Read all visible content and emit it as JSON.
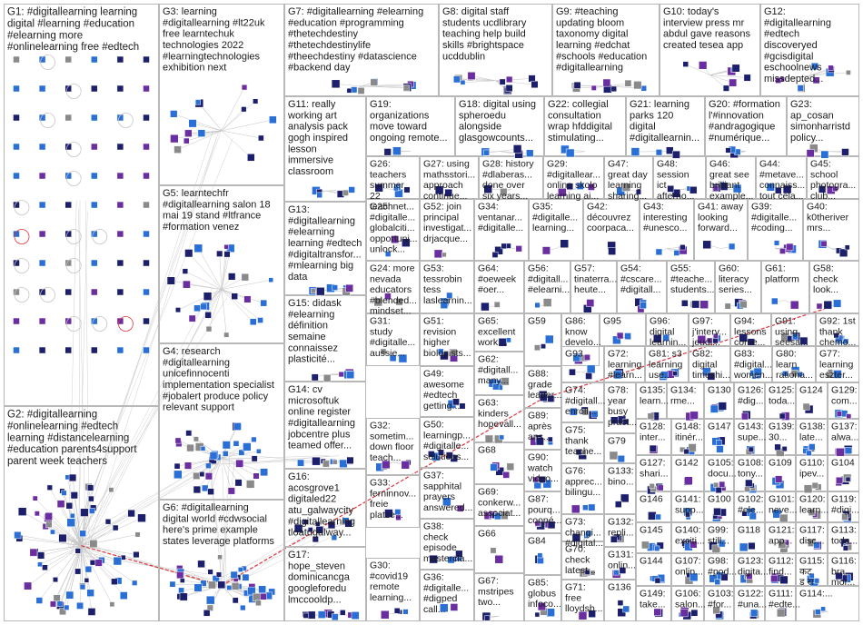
{
  "groups": [
    {
      "id": "G1",
      "lines": [
        "G1: #digitallearning learning",
        "digital #learning #education",
        "#elearning more",
        "#onlinelearning free #edtech"
      ]
    },
    {
      "id": "G2",
      "lines": [
        "G2: #digitallearning",
        "#onlinelearning #edtech",
        "learning #distancelearning",
        "#education parents4support",
        "parent week teachers"
      ]
    },
    {
      "id": "G3",
      "lines": [
        "G3: learning",
        "#digitallearning #lt22uk",
        "free learntechuk",
        "technologies 2022",
        "#learningtechnologies",
        "exhibition next"
      ]
    },
    {
      "id": "G4",
      "lines": [
        "G4: research",
        "#digitallearning",
        "unicefinnocenti",
        "implementation specialist",
        "#jobalert produce policy",
        "relevant support"
      ]
    },
    {
      "id": "G5",
      "lines": [
        "G5: learntechfr",
        "#digitallearning salon 18",
        "mai 19 stand #ltfrance",
        "#formation venez"
      ]
    },
    {
      "id": "G6",
      "lines": [
        "G6: #digitallearning",
        "digital world #cdwsocial",
        "here's prime example",
        "states leverage platforms"
      ]
    },
    {
      "id": "G7",
      "lines": [
        "G7: #digitallearning #elearning",
        "#education #programming",
        "#thetechdestiny",
        "#thetechdestinylife",
        "#theechdestiny #datascience",
        "#backend day"
      ]
    },
    {
      "id": "G8",
      "lines": [
        "G8: digital staff",
        "students ucdlibrary",
        "teaching help build",
        "skills #brightspace",
        "ucddublin"
      ]
    },
    {
      "id": "G9",
      "lines": [
        "G9: #teaching",
        "updating bloom",
        "taxonomy digital",
        "learning #edchat",
        "#schools #education",
        "#digitallearning"
      ]
    },
    {
      "id": "G10",
      "lines": [
        "G10: today's",
        "interview press mr",
        "abdul gave reasons",
        "created tesea app"
      ]
    },
    {
      "id": "G11",
      "lines": [
        "G11: really",
        "working art",
        "analysis pack",
        "gogh inspired",
        "lesson",
        "immersive",
        "classroom"
      ]
    },
    {
      "id": "G12",
      "lines": [
        "G12:",
        "#digitallearning",
        "#edtech",
        "discoveryed",
        "#gcisdigital",
        "eschoolnews",
        "missdepted..."
      ]
    },
    {
      "id": "G13",
      "lines": [
        "G13:",
        "#digitallearning",
        "#elearning",
        "learning #edtech",
        "#digitaltransfor...",
        "#mlearning big",
        "data"
      ]
    },
    {
      "id": "G14",
      "lines": [
        "G14: cv",
        "microsoftuk",
        "online register",
        "#digitallearning",
        "jobcentre plus",
        "teamed offer..."
      ]
    },
    {
      "id": "G15",
      "lines": [
        "G15: didask",
        "#elearning",
        "définition",
        "semaine",
        "connaissez",
        "plasticité..."
      ]
    },
    {
      "id": "G16",
      "lines": [
        "G16:",
        "acosgrove1",
        "digitaled22",
        "atu_galwaycity",
        "#digitallearning",
        "tloatugalway..."
      ]
    },
    {
      "id": "G17",
      "lines": [
        "G17:",
        "hope_steven",
        "dominicancga",
        "googleforedu",
        "lmccooldp..."
      ]
    },
    {
      "id": "G18",
      "lines": [
        "G18: digital using",
        "spheroedu",
        "alongside",
        "glasgowcounts..."
      ]
    },
    {
      "id": "G19",
      "lines": [
        "G19:",
        "organizations",
        "move toward",
        "ongoing remote..."
      ]
    },
    {
      "id": "G20",
      "lines": [
        "G20: #formation",
        "l'#innovation",
        "#andragogique",
        "#numérique..."
      ]
    },
    {
      "id": "G21",
      "lines": [
        "G21: learning",
        "parks 120",
        "digital",
        "#digitallearnin..."
      ]
    },
    {
      "id": "G22",
      "lines": [
        "G22: collegial",
        "consultation",
        "wrap hfddigital",
        "stimulating..."
      ]
    },
    {
      "id": "G23",
      "lines": [
        "G23:",
        "ap_cosan",
        "simonharristd",
        "policy..."
      ]
    },
    {
      "id": "G24",
      "lines": [
        "G24: more",
        "nevada",
        "educators",
        "#blended...",
        "mindset..."
      ]
    },
    {
      "id": "G25",
      "lines": [
        "G25:",
        "#digitalle...",
        "globalciti...",
        "opportuni...",
        "unlock..."
      ]
    },
    {
      "id": "G26",
      "lines": [
        "G26:",
        "teachers",
        "summer",
        "22",
        "teachnet..."
      ]
    },
    {
      "id": "G27",
      "lines": [
        "G27: using",
        "mathsstori...",
        "approach",
        "continue..."
      ]
    },
    {
      "id": "G28",
      "lines": [
        "G28: history",
        "#dlaberas...",
        "done over",
        "six years..."
      ]
    },
    {
      "id": "G29",
      "lines": [
        "G29:",
        "#digitallear...",
        "online skolo",
        "learning ai..."
      ]
    },
    {
      "id": "G30",
      "lines": [
        "G30:",
        "#covid19",
        "remote",
        "learning..."
      ]
    },
    {
      "id": "G31",
      "lines": [
        "G31:",
        "study",
        "#digitalle...",
        "aussie..."
      ]
    },
    {
      "id": "G32",
      "lines": [
        "G32:",
        "sometim...",
        "down floor",
        "teach..."
      ]
    },
    {
      "id": "G33",
      "lines": [
        "G33:",
        "ferninnov...",
        "freie",
        "platze..."
      ]
    },
    {
      "id": "G34",
      "lines": [
        "G34:",
        "ventanar...",
        "#digitalle..."
      ]
    },
    {
      "id": "G35",
      "lines": [
        "G35:",
        "#digitalle...",
        "learning..."
      ]
    },
    {
      "id": "G36",
      "lines": [
        "G36:",
        "#digitalle...",
        "#digped",
        "call..."
      ]
    },
    {
      "id": "G37",
      "lines": [
        "G37:",
        "sapphital",
        "prayers",
        "answered..."
      ]
    },
    {
      "id": "G38",
      "lines": [
        "G38:",
        "check",
        "episode",
        "mastercla..."
      ]
    },
    {
      "id": "G39",
      "lines": [
        "G39:",
        "#digitalle...",
        "#coding..."
      ]
    },
    {
      "id": "G40",
      "lines": [
        "G40:",
        "k0theriver",
        "mrs..."
      ]
    },
    {
      "id": "G41",
      "lines": [
        "G41: away",
        "looking",
        "forward..."
      ]
    },
    {
      "id": "G42",
      "lines": [
        "G42:",
        "découvrez",
        "coorpaca..."
      ]
    },
    {
      "id": "G43",
      "lines": [
        "G43:",
        "interesting",
        "#unesco..."
      ]
    },
    {
      "id": "G44",
      "lines": [
        "G44:",
        "#metave...",
        "connaiss...",
        "tout cela..."
      ]
    },
    {
      "id": "G45",
      "lines": [
        "G45:",
        "school",
        "photogra...",
        "club..."
      ]
    },
    {
      "id": "G46",
      "lines": [
        "G46:",
        "great see",
        "brilliant",
        "example..."
      ]
    },
    {
      "id": "G47",
      "lines": [
        "G47:",
        "great day",
        "learning",
        "sharing..."
      ]
    },
    {
      "id": "G48",
      "lines": [
        "G48:",
        "session",
        "ict",
        "afterno..."
      ]
    },
    {
      "id": "G49",
      "lines": [
        "G49:",
        "awesome",
        "#edtech",
        "getting..."
      ]
    },
    {
      "id": "G50",
      "lines": [
        "G50:",
        "learningp...",
        "#digitalle...",
        "solutions..."
      ]
    },
    {
      "id": "G51",
      "lines": [
        "G51:",
        "revision",
        "higher",
        "biologists..."
      ]
    },
    {
      "id": "G52",
      "lines": [
        "G52: join",
        "principal",
        "investigat...",
        "drjacque..."
      ]
    },
    {
      "id": "G53",
      "lines": [
        "G53:",
        "tessrobin",
        "tess",
        "laslearnin..."
      ]
    },
    {
      "id": "G54",
      "lines": [
        "G54:",
        "#cscare...",
        "#digitall..."
      ]
    },
    {
      "id": "G55",
      "lines": [
        "G55:",
        "#teache...",
        "students..."
      ]
    },
    {
      "id": "G56",
      "lines": [
        "G56:",
        "#digitall...",
        "#elearni..."
      ]
    },
    {
      "id": "G57",
      "lines": [
        "G57:",
        "tinaterra...",
        "heute..."
      ]
    },
    {
      "id": "G58",
      "lines": [
        "G58:",
        "check",
        "look..."
      ]
    },
    {
      "id": "G59",
      "lines": [
        "G59"
      ]
    },
    {
      "id": "G60",
      "lines": [
        "G60:",
        "literacy",
        "series..."
      ]
    },
    {
      "id": "G61",
      "lines": [
        "G61:",
        "platform"
      ]
    },
    {
      "id": "G62",
      "lines": [
        "G62:",
        "#digitall...",
        "many..."
      ]
    },
    {
      "id": "G63",
      "lines": [
        "G63:",
        "kinders",
        "hopevall..."
      ]
    },
    {
      "id": "G64",
      "lines": [
        "G64:",
        "#oeweek",
        "#oer..."
      ]
    },
    {
      "id": "G65",
      "lines": [
        "G65:",
        "excellent",
        "work..."
      ]
    },
    {
      "id": "G66",
      "lines": [
        "G66"
      ]
    },
    {
      "id": "G67",
      "lines": [
        "G67:",
        "mstripes",
        "two..."
      ]
    },
    {
      "id": "G68",
      "lines": [
        "G68"
      ]
    },
    {
      "id": "G69",
      "lines": [
        "G69:",
        "conkerw...",
        "associat..."
      ]
    },
    {
      "id": "G70",
      "lines": [
        "G70:",
        "check",
        "latest..."
      ]
    },
    {
      "id": "G71",
      "lines": [
        "G71:",
        "free",
        "lloydsb..."
      ]
    },
    {
      "id": "G72",
      "lines": [
        "G72:",
        "learning",
        "#learn..."
      ]
    },
    {
      "id": "G73",
      "lines": [
        "G73:",
        "changi...",
        "#digital..."
      ]
    },
    {
      "id": "G74",
      "lines": [
        "G74:",
        "#digitall...",
        "enroll..."
      ]
    },
    {
      "id": "G75",
      "lines": [
        "G75:",
        "thank",
        "teache..."
      ]
    },
    {
      "id": "G76",
      "lines": [
        "G76:",
        "apprec...",
        "bilingu..."
      ]
    },
    {
      "id": "G77",
      "lines": [
        "G77:",
        "learning",
        "eszter..."
      ]
    },
    {
      "id": "G78",
      "lines": [
        "G78:",
        "year",
        "busy",
        "pract..."
      ]
    },
    {
      "id": "G79",
      "lines": [
        "G79"
      ]
    },
    {
      "id": "G80",
      "lines": [
        "G80:",
        "learn",
        "rationa..."
      ]
    },
    {
      "id": "G81",
      "lines": [
        "G81: s3",
        "learning",
        "use..."
      ]
    },
    {
      "id": "G82",
      "lines": [
        "G82:",
        "digital",
        "timeshi..."
      ]
    },
    {
      "id": "G83",
      "lines": [
        "G83:",
        "#digital...",
        "women..."
      ]
    },
    {
      "id": "G84",
      "lines": [
        "G84"
      ]
    },
    {
      "id": "G85",
      "lines": [
        "G85:",
        "globus",
        "infoco..."
      ]
    },
    {
      "id": "G86",
      "lines": [
        "G86:",
        "know",
        "develo..."
      ]
    },
    {
      "id": "G87",
      "lines": [
        "G87:",
        "pourq...",
        "coopé..."
      ]
    },
    {
      "id": "G88",
      "lines": [
        "G88:",
        "grade",
        "leader..."
      ]
    },
    {
      "id": "G89",
      "lines": [
        "G89:",
        "après",
        "ans..."
      ]
    },
    {
      "id": "G90",
      "lines": [
        "G90:",
        "watch",
        "video..."
      ]
    },
    {
      "id": "G91",
      "lines": [
        "G91:",
        "using",
        "seesa..."
      ]
    },
    {
      "id": "G92",
      "lines": [
        "G92: 1st",
        "thank",
        "chemo..."
      ]
    },
    {
      "id": "G93",
      "lines": [
        "G93"
      ]
    },
    {
      "id": "G94",
      "lines": [
        "G94:",
        "lessons",
        "come..."
      ]
    },
    {
      "id": "G95",
      "lines": [
        "G95"
      ]
    },
    {
      "id": "G96",
      "lines": [
        "G96:",
        "digital",
        "learnin..."
      ]
    },
    {
      "id": "G97",
      "lines": [
        "G97:",
        "j'interv...",
        "jeudi..."
      ]
    },
    {
      "id": "G98",
      "lines": [
        "G98:",
        "#pod..."
      ]
    },
    {
      "id": "G99",
      "lines": [
        "G99:",
        "still..."
      ]
    },
    {
      "id": "G100",
      "lines": [
        "G100"
      ]
    },
    {
      "id": "G101",
      "lines": [
        "G101:",
        "neve..."
      ]
    },
    {
      "id": "G102",
      "lines": [
        "G102:",
        "#ele..."
      ]
    },
    {
      "id": "G103",
      "lines": [
        "G103:",
        "#for..."
      ]
    },
    {
      "id": "G104",
      "lines": [
        "G104"
      ]
    },
    {
      "id": "G105",
      "lines": [
        "G105:",
        "docu..."
      ]
    },
    {
      "id": "G106",
      "lines": [
        "G106:",
        "salon..."
      ]
    },
    {
      "id": "G107",
      "lines": [
        "G107:",
        "onlin..."
      ]
    },
    {
      "id": "G108",
      "lines": [
        "G108:",
        "tony..."
      ]
    },
    {
      "id": "G109",
      "lines": [
        "G109"
      ]
    },
    {
      "id": "G110",
      "lines": [
        "G110:",
        "ipev..."
      ]
    },
    {
      "id": "G111",
      "lines": [
        "G111:",
        "#edte..."
      ]
    },
    {
      "id": "G112",
      "lines": [
        "G112:",
        "find..."
      ]
    },
    {
      "id": "G113",
      "lines": [
        "G113:",
        "toda..."
      ]
    },
    {
      "id": "G114",
      "lines": [
        "G114:..."
      ]
    },
    {
      "id": "G115",
      "lines": [
        "G115:",
        "कट",
        "ड स"
      ]
    },
    {
      "id": "G116",
      "lines": [
        "G116:",
        "bra...",
        "mor..."
      ]
    },
    {
      "id": "G117",
      "lines": [
        "G117:",
        "disc..."
      ]
    },
    {
      "id": "G118",
      "lines": [
        "G118"
      ]
    },
    {
      "id": "G119",
      "lines": [
        "G119:",
        "#digi..."
      ]
    },
    {
      "id": "G120",
      "lines": [
        "G120:",
        "learn..."
      ]
    },
    {
      "id": "G121",
      "lines": [
        "G121:",
        "app..."
      ]
    },
    {
      "id": "G122",
      "lines": [
        "G122:",
        "#una..."
      ]
    },
    {
      "id": "G123",
      "lines": [
        "G123:",
        "digita..."
      ]
    },
    {
      "id": "G124",
      "lines": [
        "G124"
      ]
    },
    {
      "id": "G125",
      "lines": [
        "G125:",
        "toda..."
      ]
    },
    {
      "id": "G126",
      "lines": [
        "G126:",
        "#dig..."
      ]
    },
    {
      "id": "G127",
      "lines": [
        "G127:",
        "shari..."
      ]
    },
    {
      "id": "G128",
      "lines": [
        "G128:",
        "inter..."
      ]
    },
    {
      "id": "G129",
      "lines": [
        "G129:",
        "com..."
      ]
    },
    {
      "id": "G130",
      "lines": [
        "G130"
      ]
    },
    {
      "id": "G131",
      "lines": [
        "G131:",
        "onlin..."
      ]
    },
    {
      "id": "G132",
      "lines": [
        "G132:",
        "repli..."
      ]
    },
    {
      "id": "G133",
      "lines": [
        "G133:",
        "bino..."
      ]
    },
    {
      "id": "G134",
      "lines": [
        "G134:",
        "rme..."
      ]
    },
    {
      "id": "G135",
      "lines": [
        "G135:",
        "learn..."
      ]
    },
    {
      "id": "G136",
      "lines": [
        "G136"
      ]
    },
    {
      "id": "G137",
      "lines": [
        "G137:",
        "alwa..."
      ]
    },
    {
      "id": "G138",
      "lines": [
        "G138:",
        "late..."
      ]
    },
    {
      "id": "G139",
      "lines": [
        "G139:",
        "30..."
      ]
    },
    {
      "id": "G140",
      "lines": [
        "G140:",
        "exciti..."
      ]
    },
    {
      "id": "G141",
      "lines": [
        "G141:",
        "supp..."
      ]
    },
    {
      "id": "G142",
      "lines": [
        "G142"
      ]
    },
    {
      "id": "G143",
      "lines": [
        "G143:",
        "supe..."
      ]
    },
    {
      "id": "G144",
      "lines": [
        "G144"
      ]
    },
    {
      "id": "G145",
      "lines": [
        "G145"
      ]
    },
    {
      "id": "G146",
      "lines": [
        "G146"
      ]
    },
    {
      "id": "G147",
      "lines": [
        "G147"
      ]
    },
    {
      "id": "G148",
      "lines": [
        "G148:",
        "itinér..."
      ]
    },
    {
      "id": "G149",
      "lines": [
        "G149:",
        "take..."
      ]
    }
  ],
  "colors": {
    "box_border": "#b8b8b8",
    "label_text": "#1a1a1a",
    "edge_gray": "#c4c4c4",
    "edge_red": "#e0303a",
    "node_navy": "#1c1f6b",
    "node_blue": "#2a6fd6",
    "node_purple": "#6a2ea0",
    "node_gray": "#8a8a8a"
  },
  "icons": {
    "node": "profile-image-icon",
    "self_loop": "self-loop-icon"
  }
}
